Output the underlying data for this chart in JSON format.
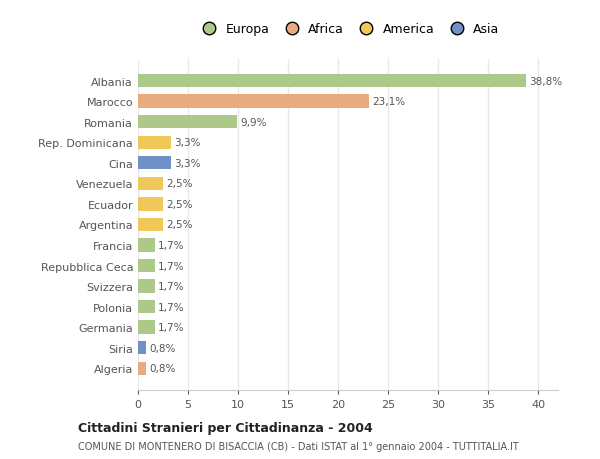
{
  "categories": [
    "Albania",
    "Marocco",
    "Romania",
    "Rep. Dominicana",
    "Cina",
    "Venezuela",
    "Ecuador",
    "Argentina",
    "Francia",
    "Repubblica Ceca",
    "Svizzera",
    "Polonia",
    "Germania",
    "Siria",
    "Algeria"
  ],
  "values": [
    38.8,
    23.1,
    9.9,
    3.3,
    3.3,
    2.5,
    2.5,
    2.5,
    1.7,
    1.7,
    1.7,
    1.7,
    1.7,
    0.8,
    0.8
  ],
  "labels": [
    "38,8%",
    "23,1%",
    "9,9%",
    "3,3%",
    "3,3%",
    "2,5%",
    "2,5%",
    "2,5%",
    "1,7%",
    "1,7%",
    "1,7%",
    "1,7%",
    "1,7%",
    "0,8%",
    "0,8%"
  ],
  "colors": [
    "#adc98a",
    "#e8aa7e",
    "#adc98a",
    "#f0c85a",
    "#7090c8",
    "#f0c85a",
    "#f0c85a",
    "#f0c85a",
    "#adc98a",
    "#adc98a",
    "#adc98a",
    "#adc98a",
    "#adc98a",
    "#7090c8",
    "#e8aa7e"
  ],
  "legend_labels": [
    "Europa",
    "Africa",
    "America",
    "Asia"
  ],
  "legend_colors": [
    "#adc98a",
    "#e8aa7e",
    "#f0c85a",
    "#7090c8"
  ],
  "title": "Cittadini Stranieri per Cittadinanza - 2004",
  "subtitle": "COMUNE DI MONTENERO DI BISACCIA (CB) - Dati ISTAT al 1° gennaio 2004 - TUTTITALIA.IT",
  "xlim": [
    0,
    42
  ],
  "xticks": [
    0,
    5,
    10,
    15,
    20,
    25,
    30,
    35,
    40
  ],
  "background_color": "#ffffff",
  "grid_color": "#e8e8e8",
  "bar_height": 0.65
}
